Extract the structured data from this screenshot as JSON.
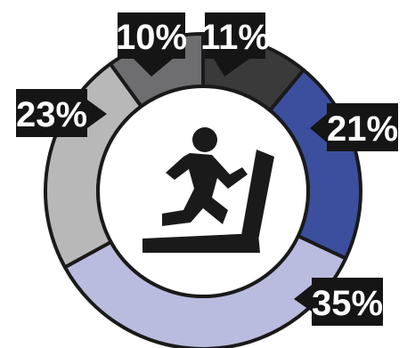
{
  "chart_data": {
    "type": "pie",
    "variant": "donut",
    "center_icon": "treadmill-runner-icon",
    "slices": [
      {
        "label": "11%",
        "value": 11,
        "color": "#3a3a3a"
      },
      {
        "label": "21%",
        "value": 21,
        "color": "#3c4f9e"
      },
      {
        "label": "35%",
        "value": 35,
        "color": "#b9bcde"
      },
      {
        "label": "23%",
        "value": 23,
        "color": "#b8b8b8"
      },
      {
        "label": "10%",
        "value": 10,
        "color": "#6e6e70"
      }
    ],
    "label_box_color": "#151515",
    "label_text_color": "#ffffff"
  }
}
